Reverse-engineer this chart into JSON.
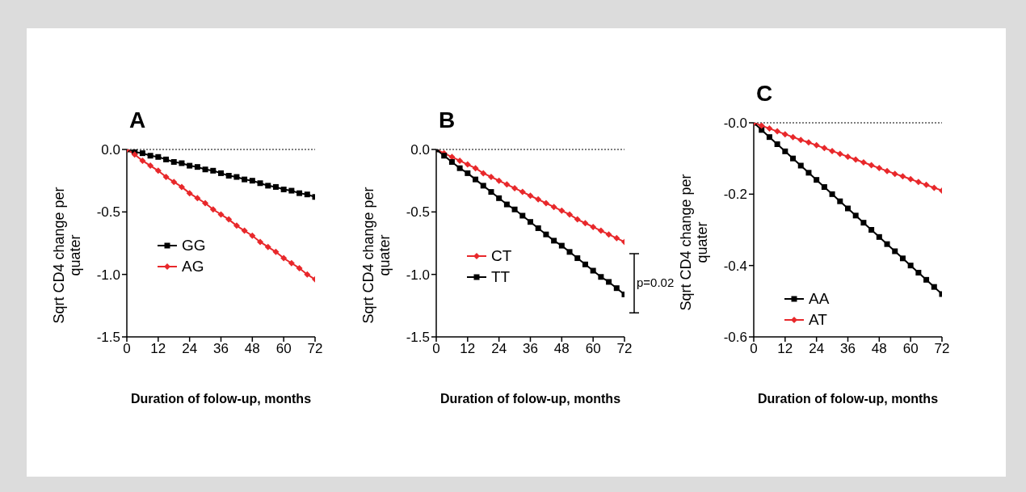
{
  "chart_data": [
    {
      "type": "line",
      "title": "A",
      "xlabel": "Duration of folow-up, months",
      "ylabel": "Sqrt CD4 change per quater",
      "x": [
        0,
        3,
        6,
        9,
        12,
        15,
        18,
        21,
        24,
        27,
        30,
        33,
        36,
        39,
        42,
        45,
        48,
        51,
        54,
        57,
        60,
        63,
        66,
        69,
        72
      ],
      "xlim": [
        0,
        72
      ],
      "xticks": [
        0,
        12,
        24,
        36,
        48,
        60,
        72
      ],
      "ylim": [
        -1.5,
        0
      ],
      "yticks": [
        {
          "value": 0,
          "label": "0.0"
        },
        {
          "value": -0.5,
          "label": "-0.5"
        },
        {
          "value": -1,
          "label": "-1.0"
        },
        {
          "value": -1.5,
          "label": "-1.5"
        }
      ],
      "legend": "left",
      "ref_lines": [
        {
          "axis": "y",
          "value": 0,
          "line_style": "dotted",
          "color": "#000000"
        }
      ],
      "series": [
        {
          "name": "GG",
          "color": "#000000",
          "marker": "square",
          "values": [
            0,
            -0.02,
            -0.03,
            -0.05,
            -0.06,
            -0.08,
            -0.1,
            -0.11,
            -0.13,
            -0.14,
            -0.16,
            -0.17,
            -0.19,
            -0.21,
            -0.22,
            -0.24,
            -0.25,
            -0.27,
            -0.29,
            -0.3,
            -0.32,
            -0.33,
            -0.35,
            -0.36,
            -0.38
          ]
        },
        {
          "name": "AG",
          "color": "#e8282b",
          "marker": "diamond",
          "values": [
            0,
            -0.04,
            -0.09,
            -0.13,
            -0.17,
            -0.22,
            -0.26,
            -0.3,
            -0.35,
            -0.39,
            -0.43,
            -0.48,
            -0.52,
            -0.56,
            -0.61,
            -0.65,
            -0.69,
            -0.74,
            -0.78,
            -0.82,
            -0.87,
            -0.91,
            -0.95,
            -1.0,
            -1.04
          ]
        }
      ]
    },
    {
      "type": "line",
      "title": "B",
      "xlabel": "Duration of folow-up, months",
      "ylabel": "Sqrt CD4 change per quater",
      "x": [
        0,
        3,
        6,
        9,
        12,
        15,
        18,
        21,
        24,
        27,
        30,
        33,
        36,
        39,
        42,
        45,
        48,
        51,
        54,
        57,
        60,
        63,
        66,
        69,
        72
      ],
      "xlim": [
        0,
        72
      ],
      "xticks": [
        0,
        12,
        24,
        36,
        48,
        60,
        72
      ],
      "ylim": [
        -1.5,
        0
      ],
      "yticks": [
        {
          "value": 0,
          "label": "0.0"
        },
        {
          "value": -0.5,
          "label": "-0.5"
        },
        {
          "value": -1,
          "label": "-1.0"
        },
        {
          "value": -1.5,
          "label": "-1.5"
        }
      ],
      "legend": "left",
      "ref_lines": [
        {
          "axis": "y",
          "value": 0,
          "line_style": "dotted",
          "color": "#000000"
        }
      ],
      "annotations": [
        "p=0.02"
      ],
      "series": [
        {
          "name": "CT",
          "color": "#e8282b",
          "marker": "diamond",
          "values": [
            0,
            -0.03,
            -0.06,
            -0.09,
            -0.12,
            -0.15,
            -0.19,
            -0.22,
            -0.25,
            -0.28,
            -0.31,
            -0.34,
            -0.37,
            -0.4,
            -0.43,
            -0.46,
            -0.49,
            -0.52,
            -0.56,
            -0.59,
            -0.62,
            -0.65,
            -0.68,
            -0.71,
            -0.74
          ]
        },
        {
          "name": "TT",
          "color": "#000000",
          "marker": "square",
          "values": [
            0,
            -0.05,
            -0.1,
            -0.15,
            -0.19,
            -0.24,
            -0.29,
            -0.34,
            -0.39,
            -0.44,
            -0.48,
            -0.53,
            -0.58,
            -0.63,
            -0.68,
            -0.73,
            -0.77,
            -0.82,
            -0.87,
            -0.92,
            -0.97,
            -1.02,
            -1.06,
            -1.11,
            -1.16
          ]
        }
      ]
    },
    {
      "type": "line",
      "title": "C",
      "xlabel": "Duration of folow-up, months",
      "ylabel": "Sqrt CD4 change per quater",
      "x": [
        0,
        3,
        6,
        9,
        12,
        15,
        18,
        21,
        24,
        27,
        30,
        33,
        36,
        39,
        42,
        45,
        48,
        51,
        54,
        57,
        60,
        63,
        66,
        69,
        72
      ],
      "xlim": [
        0,
        72
      ],
      "xticks": [
        0,
        12,
        24,
        36,
        48,
        60,
        72
      ],
      "ylim": [
        -0.6,
        0
      ],
      "yticks": [
        {
          "value": 0,
          "label": "-0.0"
        },
        {
          "value": -0.2,
          "label": "-0.2"
        },
        {
          "value": -0.4,
          "label": "-0.4"
        },
        {
          "value": -0.6,
          "label": "-0.6"
        }
      ],
      "legend": "left",
      "ref_lines": [
        {
          "axis": "y",
          "value": 0,
          "line_style": "dotted",
          "color": "#000000"
        }
      ],
      "series": [
        {
          "name": "AA",
          "color": "#000000",
          "marker": "square",
          "values": [
            0,
            -0.02,
            -0.04,
            -0.06,
            -0.08,
            -0.1,
            -0.12,
            -0.14,
            -0.16,
            -0.18,
            -0.2,
            -0.22,
            -0.24,
            -0.26,
            -0.28,
            -0.3,
            -0.32,
            -0.34,
            -0.36,
            -0.38,
            -0.4,
            -0.42,
            -0.44,
            -0.46,
            -0.48
          ]
        },
        {
          "name": "AT",
          "color": "#e8282b",
          "marker": "diamond",
          "values": [
            0,
            -0.008,
            -0.016,
            -0.024,
            -0.032,
            -0.04,
            -0.048,
            -0.055,
            -0.063,
            -0.071,
            -0.079,
            -0.087,
            -0.095,
            -0.103,
            -0.111,
            -0.119,
            -0.127,
            -0.135,
            -0.143,
            -0.15,
            -0.158,
            -0.166,
            -0.174,
            -0.182,
            -0.19
          ]
        }
      ]
    }
  ]
}
